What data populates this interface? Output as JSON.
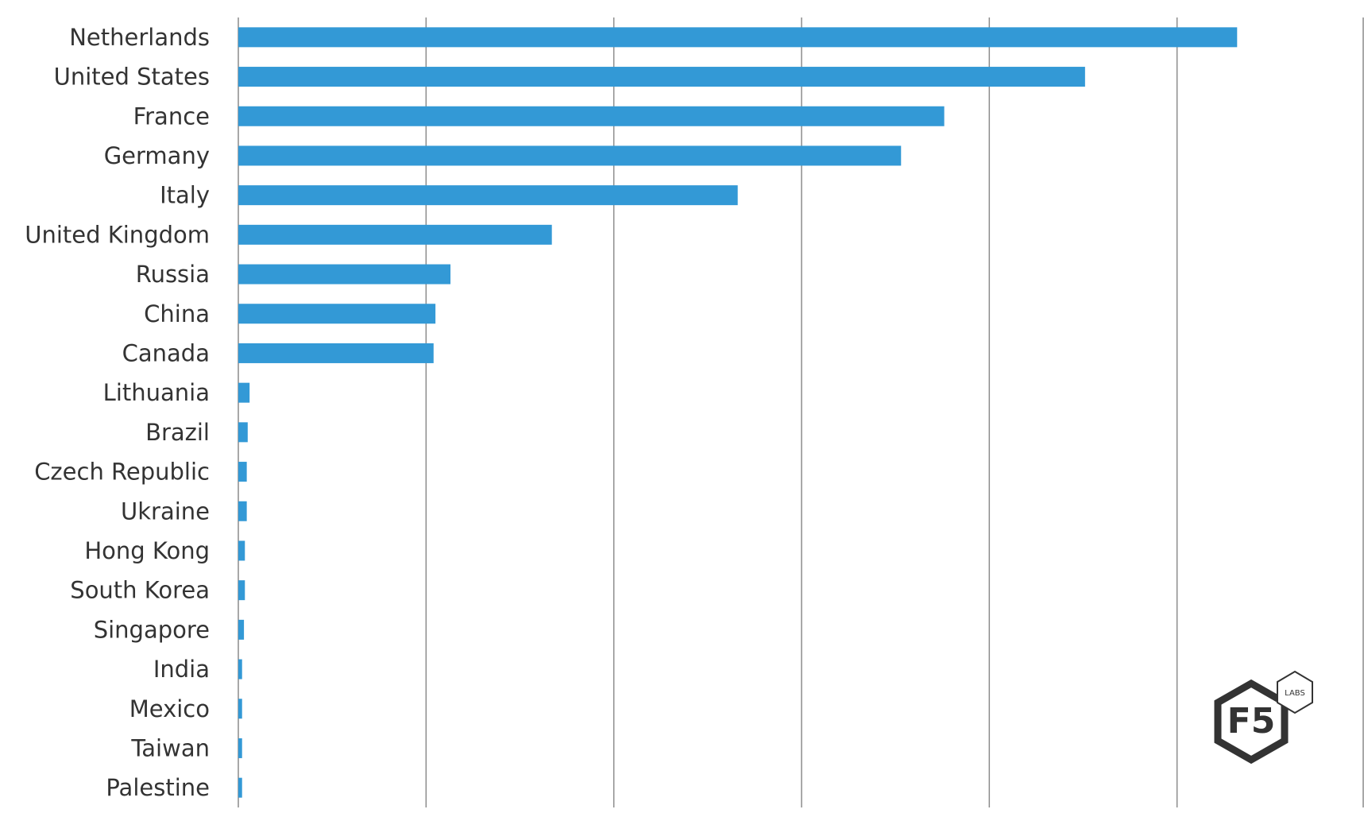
{
  "chart_data": {
    "type": "bar",
    "orientation": "horizontal",
    "categories": [
      "Netherlands",
      "United States",
      "France",
      "Germany",
      "Italy",
      "United Kingdom",
      "Russia",
      "China",
      "Canada",
      "Lithuania",
      "Brazil",
      "Czech Republic",
      "Ukraine",
      "Hong Kong",
      "South Korea",
      "Singapore",
      "India",
      "Mexico",
      "Taiwan",
      "Palestine"
    ],
    "values": [
      5.32,
      4.51,
      3.76,
      3.53,
      2.66,
      1.67,
      1.13,
      1.05,
      1.04,
      0.06,
      0.05,
      0.045,
      0.045,
      0.035,
      0.035,
      0.03,
      0.02,
      0.02,
      0.02,
      0.02
    ],
    "xlim": [
      0,
      6
    ],
    "x_gridlines": 6,
    "x_tick_labels_visible": false,
    "grid": true,
    "bar_color": "#3399d6",
    "gridline_color": "#8c8c8c",
    "label_color": "#333333"
  },
  "logo": {
    "brand": "F5",
    "sub": "LABS",
    "color": "#333333"
  }
}
